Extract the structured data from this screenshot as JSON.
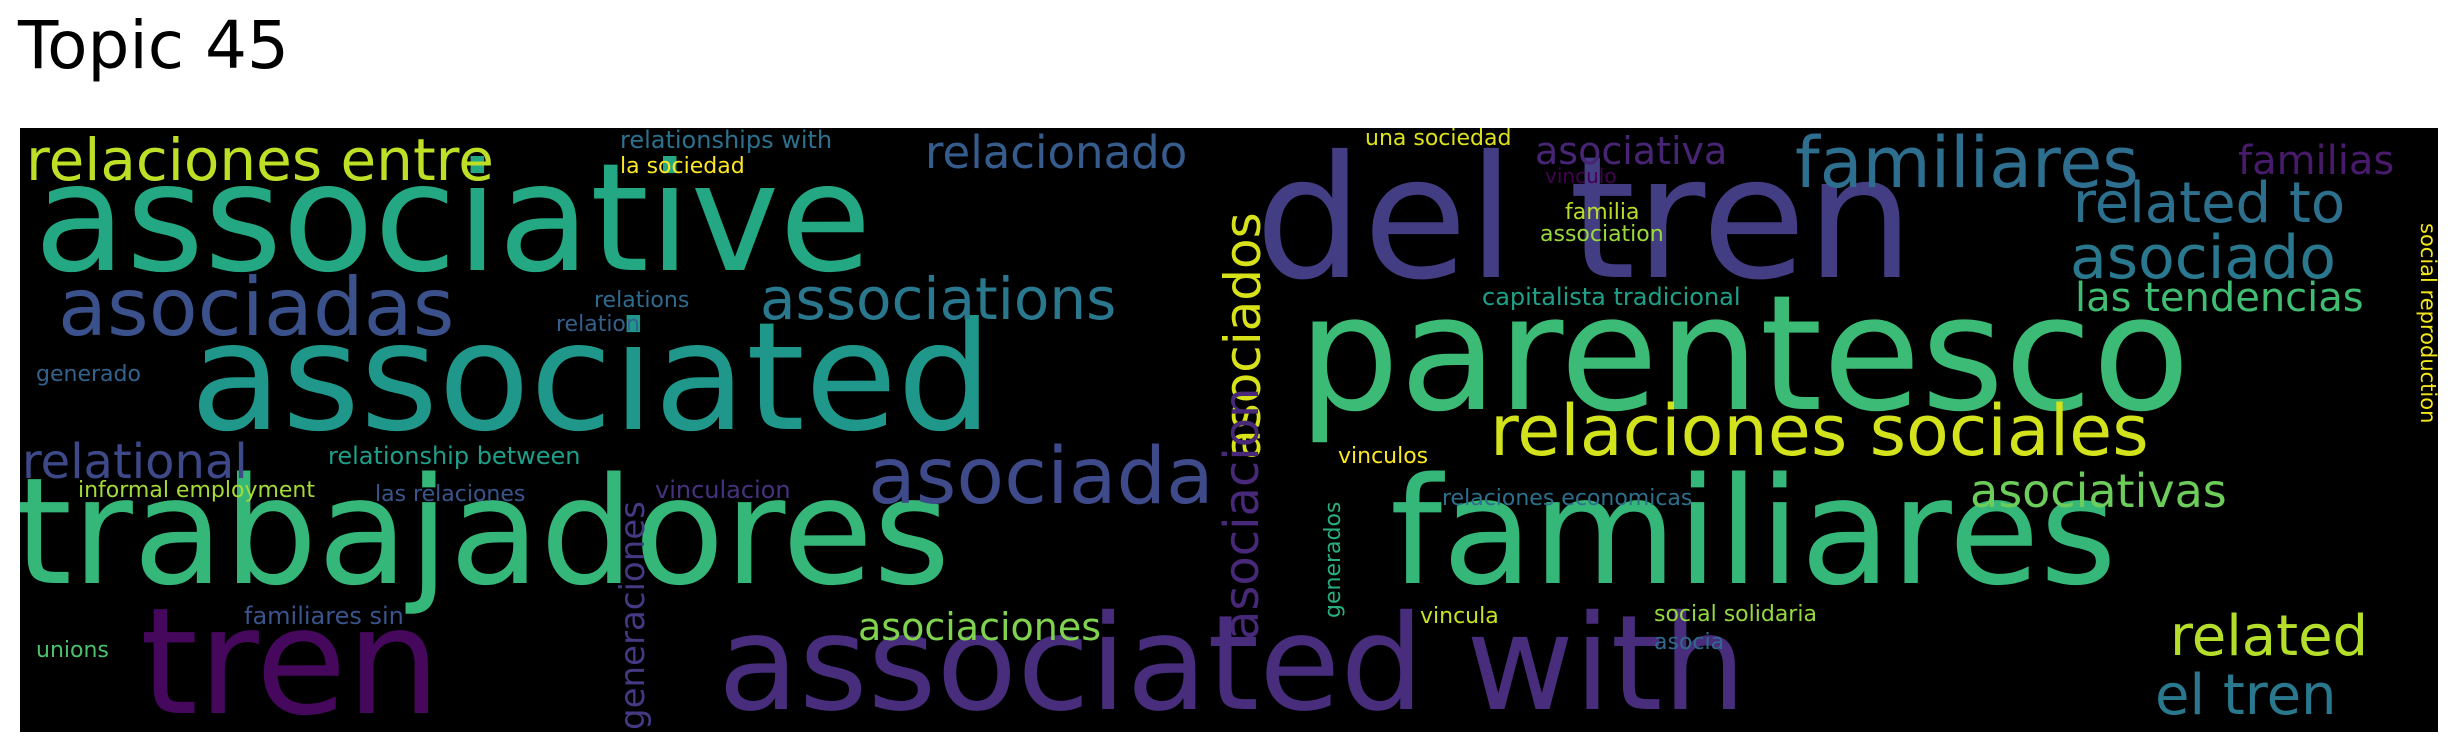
{
  "title": "Topic 45",
  "words": [
    {
      "text": "associative",
      "color": "#24a883"
    },
    {
      "text": "del tren",
      "color": "#433d84"
    },
    {
      "text": "parentesco",
      "color": "#3bbb75"
    },
    {
      "text": "associated",
      "color": "#1f988b"
    },
    {
      "text": "trabajadores",
      "color": "#35b779"
    },
    {
      "text": "familiares",
      "color": "#35b779"
    },
    {
      "text": "associated with",
      "color": "#472d7b"
    },
    {
      "text": "tren",
      "color": "#46085c"
    },
    {
      "text": "relaciones sociales",
      "color": "#d2e21b"
    },
    {
      "text": "relaciones entre",
      "color": "#bddf26"
    },
    {
      "text": "familiares",
      "color": "#2e6e8e"
    },
    {
      "text": "asociadas",
      "color": "#3b518b"
    },
    {
      "text": "associations",
      "color": "#2a788e"
    },
    {
      "text": "asociada",
      "color": "#3e4a89"
    },
    {
      "text": "related to",
      "color": "#2d708e"
    },
    {
      "text": "asociado",
      "color": "#2a788e"
    },
    {
      "text": "las tendencias",
      "color": "#40bd72"
    },
    {
      "text": "relacionado",
      "color": "#365c8d"
    },
    {
      "text": "asociados",
      "color": "#d8e219"
    },
    {
      "text": "asociacion",
      "color": "#482878"
    },
    {
      "text": "relational",
      "color": "#3e4989"
    },
    {
      "text": "asociativas",
      "color": "#6ccd5a"
    },
    {
      "text": "related",
      "color": "#b5de2b"
    },
    {
      "text": "el tren",
      "color": "#2a788e"
    },
    {
      "text": "asociativa",
      "color": "#482475"
    },
    {
      "text": "familias",
      "color": "#481a6c"
    },
    {
      "text": "asociaciones",
      "color": "#7fd34e"
    },
    {
      "text": "generaciones",
      "color": "#443983"
    },
    {
      "text": "relationships with",
      "color": "#2c728e"
    },
    {
      "text": "la sociedad",
      "color": "#fde725"
    },
    {
      "text": "una sociedad",
      "color": "#dde318"
    },
    {
      "text": "vinculo",
      "color": "#440154"
    },
    {
      "text": "familia",
      "color": "#b8de29"
    },
    {
      "text": "association",
      "color": "#9bd93c"
    },
    {
      "text": "capitalista tradicional",
      "color": "#1fa088"
    },
    {
      "text": "relations",
      "color": "#2f6b8e"
    },
    {
      "text": "relation",
      "color": "#355f8d"
    },
    {
      "text": "generado",
      "color": "#33638d"
    },
    {
      "text": "relationship between",
      "color": "#1f9e89"
    },
    {
      "text": "informal employment",
      "color": "#a5db36"
    },
    {
      "text": "las relaciones",
      "color": "#39568c"
    },
    {
      "text": "vinculacion",
      "color": "#46337f"
    },
    {
      "text": "vinculos",
      "color": "#fde725"
    },
    {
      "text": "relaciones economicas",
      "color": "#2d708e"
    },
    {
      "text": "generados",
      "color": "#29af7f"
    },
    {
      "text": "vincula",
      "color": "#cae11f"
    },
    {
      "text": "social solidaria",
      "color": "#95d840"
    },
    {
      "text": "asocia",
      "color": "#31688e"
    },
    {
      "text": "familiares sin",
      "color": "#3a548c"
    },
    {
      "text": "unions",
      "color": "#4ac16d"
    },
    {
      "text": "social reproduction",
      "color": "#f1e51d"
    }
  ]
}
